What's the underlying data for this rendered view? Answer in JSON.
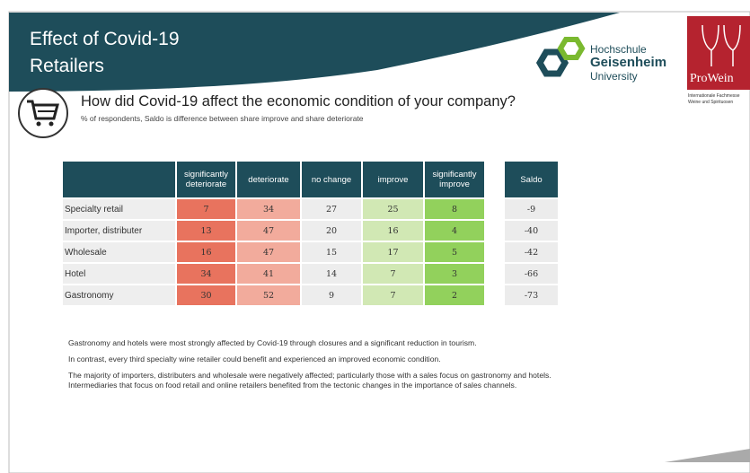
{
  "header": {
    "title_line1": "Effect of Covid-19",
    "title_line2": "Retailers"
  },
  "logos": {
    "university": [
      "Hochschule",
      "Geisenheim",
      "University"
    ],
    "prowein": "ProWein",
    "prowein_sub": [
      "Internationale Fachmesse",
      "Weine und Spirituosen"
    ]
  },
  "question": {
    "title": "How did Covid-19 affect the economic condition of your company?",
    "subtitle": "% of respondents, Saldo is difference between share improve and share deteriorate"
  },
  "table": {
    "columns": [
      "significantly deteriorate",
      "deteriorate",
      "no change",
      "improve",
      "significantly improve"
    ],
    "saldo_header": "Saldo",
    "rows": [
      {
        "label": "Specialty retail",
        "values": [
          7,
          34,
          27,
          25,
          8
        ],
        "saldo": -9
      },
      {
        "label": "Importer, distributer",
        "values": [
          13,
          47,
          20,
          16,
          4
        ],
        "saldo": -40
      },
      {
        "label": "Wholesale",
        "values": [
          16,
          47,
          15,
          17,
          5
        ],
        "saldo": -42
      },
      {
        "label": "Hotel",
        "values": [
          34,
          41,
          14,
          7,
          3
        ],
        "saldo": -66
      },
      {
        "label": "Gastronomy",
        "values": [
          30,
          52,
          9,
          7,
          2
        ],
        "saldo": -73
      }
    ]
  },
  "notes": [
    "Gastronomy and hotels were most strongly affected by Covid-19 through closures and a significant reduction in tourism.",
    "In contrast, every third specialty wine retailer could benefit and experienced an improved economic condition.",
    "The majority of importers, distributers and wholesale were negatively affected; particularly those with a sales focus on gastronomy and hotels. Intermediaries that focus on food retail and online retailers benefited from the tectonic changes in the importance of sales channels."
  ]
}
